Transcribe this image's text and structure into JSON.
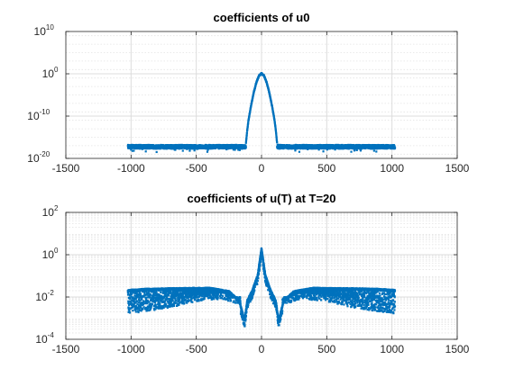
{
  "chart_data": [
    {
      "type": "scatter",
      "title": "coefficients of u0",
      "xlabel": "",
      "ylabel": "",
      "xlim": [
        -1500,
        1500
      ],
      "xticks": [
        -1500,
        -1000,
        -500,
        0,
        500,
        1000,
        1500
      ],
      "yscale": "log",
      "ylim_exponent": [
        -20,
        10
      ],
      "ytick_exponents": [
        -20,
        -10,
        0,
        10
      ],
      "grid": true,
      "minor_grid": true,
      "marker_color": "#0072BD",
      "points": {
        "x_range": [
          -1024,
          1023
        ],
        "noise_floor_log10": [
          -17.7,
          -16.8
        ],
        "noise_region": [
          [
            -1024,
            -120
          ],
          [
            120,
            1023
          ]
        ],
        "peak": {
          "x": 0,
          "y_log10": 0
        },
        "profile": [
          [
            -120,
            -16.6
          ],
          [
            -110,
            -13.5
          ],
          [
            -100,
            -11.0
          ],
          [
            -80,
            -7.5
          ],
          [
            -60,
            -4.5
          ],
          [
            -40,
            -2.1
          ],
          [
            -20,
            -0.5
          ],
          [
            0,
            0.1
          ],
          [
            20,
            -0.5
          ],
          [
            40,
            -2.1
          ],
          [
            60,
            -4.5
          ],
          [
            80,
            -7.5
          ],
          [
            100,
            -11.0
          ],
          [
            110,
            -13.5
          ],
          [
            120,
            -16.6
          ]
        ]
      }
    },
    {
      "type": "scatter",
      "title": "coefficients of u(T) at T=20",
      "xlabel": "",
      "ylabel": "",
      "xlim": [
        -1500,
        1500
      ],
      "xticks": [
        -1500,
        -1000,
        -500,
        0,
        500,
        1000,
        1500
      ],
      "yscale": "log",
      "ylim_exponent": [
        -4,
        2
      ],
      "ytick_exponents": [
        -4,
        -2,
        0,
        2
      ],
      "grid": true,
      "minor_grid": true,
      "marker_color": "#0072BD",
      "points": {
        "x_range": [
          -1024,
          1023
        ],
        "envelope_log10": [
          [
            -1024,
            -1.7
          ],
          [
            -900,
            -1.65
          ],
          [
            -700,
            -1.62
          ],
          [
            -400,
            -1.6
          ],
          [
            -250,
            -1.75
          ],
          [
            -170,
            -2.2
          ],
          [
            -130,
            -3.1
          ],
          [
            -110,
            -2.2
          ],
          [
            -70,
            -1.7
          ],
          [
            -30,
            -1.0
          ],
          [
            0,
            0.3
          ],
          [
            30,
            -1.0
          ],
          [
            70,
            -1.7
          ],
          [
            110,
            -2.2
          ],
          [
            130,
            -3.1
          ],
          [
            170,
            -2.2
          ],
          [
            250,
            -1.75
          ],
          [
            400,
            -1.6
          ],
          [
            700,
            -1.62
          ],
          [
            900,
            -1.65
          ],
          [
            1023,
            -1.7
          ]
        ],
        "lower_band_log10": [
          [
            -1024,
            -2.5
          ],
          [
            -700,
            -2.2
          ],
          [
            -500,
            -1.9
          ],
          [
            -300,
            -1.8
          ],
          [
            -200,
            -2.0
          ],
          [
            200,
            -2.0
          ],
          [
            300,
            -1.8
          ],
          [
            500,
            -1.9
          ],
          [
            700,
            -2.2
          ],
          [
            1023,
            -2.5
          ]
        ]
      }
    }
  ]
}
